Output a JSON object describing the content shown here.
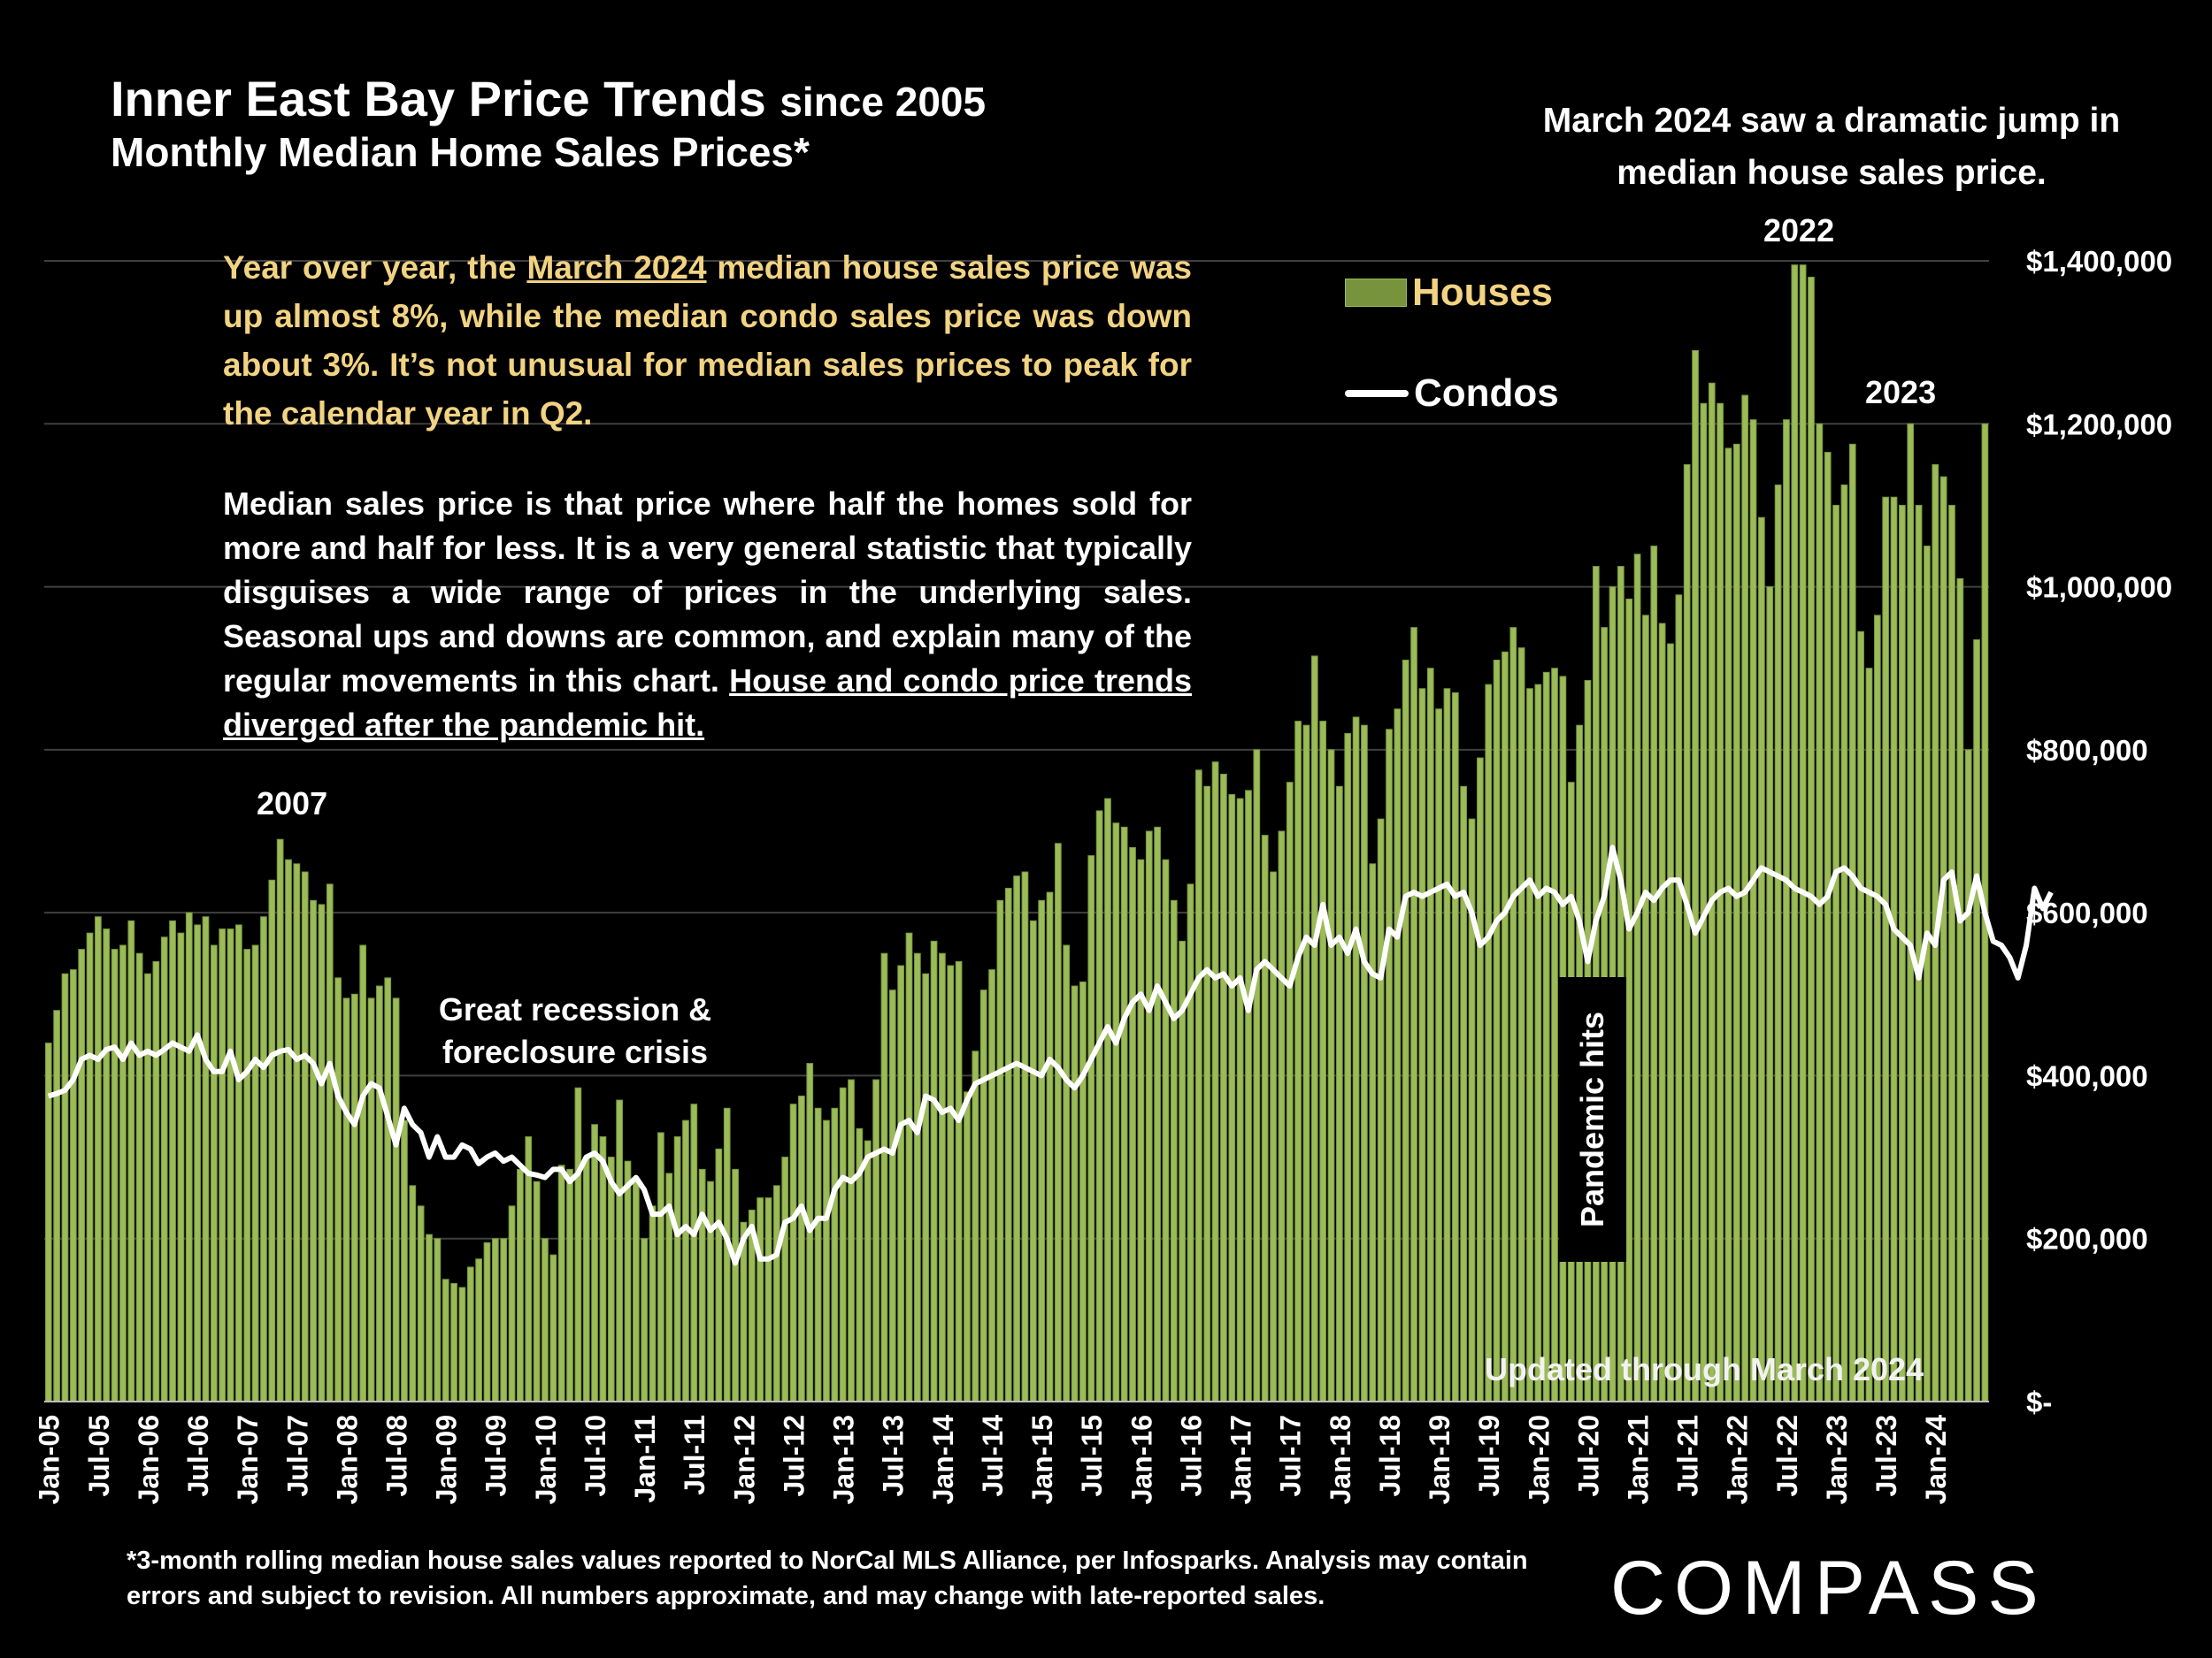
{
  "title": {
    "main": "Inner East Bay Price Trends",
    "since": "since 2005",
    "subtitle": "Monthly Median Home Sales Prices*"
  },
  "top_note": "March 2024 saw a dramatic jump in median house sales price.",
  "paragraph1": {
    "before": "Year over year, the ",
    "link": "March 2024",
    "after": " median house sales price was up almost 8%, while the median condo sales price was down about 3%. It’s not unusual for median sales prices to peak for the calendar year in Q2."
  },
  "paragraph2": {
    "text": "Median sales price is that price where half the homes sold for more and half for less. It is a very general statistic that typically disguises a wide range of prices in the underlying sales. Seasonal ups and downs are common, and explain many of the regular movements in this chart. ",
    "underlined": "House and condo price trends diverged after the pandemic hit."
  },
  "annotations": {
    "y2007": "2007",
    "recession": "Great recession & foreclosure crisis",
    "y2022": "2022",
    "y2023": "2023",
    "pandemic": "Pandemic hits",
    "updated": "Updated through March 2024"
  },
  "footnote": "*3-month rolling median house sales values reported to NorCal MLS Alliance, per Infosparks. Analysis may contain errors and subject to revision. All numbers approximate, and may change with late-reported sales.",
  "logo": "COMPASS",
  "colors": {
    "background": "#000000",
    "houses_fill": "#9bbb59",
    "houses_dark": "#77933c",
    "condo_line": "#ffffff",
    "highlight_text": "#f2d382"
  },
  "chart_data": {
    "type": "bar",
    "title": "Inner East Bay Price Trends since 2005",
    "start_month": "Jan-05",
    "ylim": [
      0,
      1400000
    ],
    "y_ticks": [
      {
        "value": 0,
        "label": "$-"
      },
      {
        "value": 200000,
        "label": "$200,000"
      },
      {
        "value": 400000,
        "label": "$400,000"
      },
      {
        "value": 600000,
        "label": "$600,000"
      },
      {
        "value": 800000,
        "label": "$800,000"
      },
      {
        "value": 1000000,
        "label": "$1,000,000"
      },
      {
        "value": 1200000,
        "label": "$1,200,000"
      },
      {
        "value": 1400000,
        "label": "$1,400,000"
      }
    ],
    "x_tick_labels": [
      "Jan-05",
      "Jul-05",
      "Jan-06",
      "Jul-06",
      "Jan-07",
      "Jul-07",
      "Jan-08",
      "Jul-08",
      "Jan-09",
      "Jul-09",
      "Jan-10",
      "Jul-10",
      "Jan-11",
      "Jul-11",
      "Jan-12",
      "Jul-12",
      "Jan-13",
      "Jul-13",
      "Jan-14",
      "Jul-14",
      "Jan-15",
      "Jul-15",
      "Jan-16",
      "Jul-16",
      "Jan-17",
      "Jul-17",
      "Jan-18",
      "Jul-18",
      "Jan-19",
      "Jul-19",
      "Jan-20",
      "Jul-20",
      "Jan-21",
      "Jul-21",
      "Jan-22",
      "Jul-22",
      "Jan-23",
      "Jul-23",
      "Jan-24"
    ],
    "grid": true,
    "legend_position": "top-right",
    "series": [
      {
        "name": "Houses",
        "type": "bar",
        "values": [
          440000,
          480000,
          525000,
          530000,
          555000,
          575000,
          595000,
          580000,
          555000,
          560000,
          590000,
          550000,
          525000,
          540000,
          570000,
          590000,
          575000,
          600000,
          585000,
          595000,
          560000,
          580000,
          580000,
          585000,
          555000,
          560000,
          595000,
          640000,
          690000,
          665000,
          660000,
          650000,
          615000,
          610000,
          635000,
          520000,
          495000,
          500000,
          560000,
          495000,
          510000,
          520000,
          495000,
          345000,
          265000,
          240000,
          205000,
          200000,
          150000,
          145000,
          140000,
          165000,
          175000,
          195000,
          200000,
          200000,
          240000,
          285000,
          325000,
          270000,
          200000,
          180000,
          290000,
          285000,
          385000,
          300000,
          340000,
          325000,
          300000,
          370000,
          295000,
          270000,
          200000,
          240000,
          330000,
          280000,
          325000,
          345000,
          365000,
          285000,
          270000,
          310000,
          360000,
          285000,
          220000,
          235000,
          250000,
          250000,
          265000,
          300000,
          365000,
          375000,
          415000,
          360000,
          345000,
          360000,
          385000,
          395000,
          335000,
          320000,
          395000,
          550000,
          505000,
          535000,
          575000,
          550000,
          525000,
          565000,
          550000,
          535000,
          540000,
          380000,
          430000,
          505000,
          530000,
          615000,
          630000,
          645000,
          650000,
          590000,
          615000,
          625000,
          685000,
          560000,
          510000,
          515000,
          670000,
          725000,
          740000,
          710000,
          705000,
          680000,
          665000,
          700000,
          705000,
          665000,
          615000,
          565000,
          635000,
          775000,
          755000,
          785000,
          770000,
          745000,
          740000,
          750000,
          800000,
          695000,
          650000,
          700000,
          760000,
          835000,
          830000,
          915000,
          835000,
          800000,
          755000,
          820000,
          840000,
          830000,
          660000,
          715000,
          825000,
          850000,
          910000,
          950000,
          875000,
          900000,
          850000,
          875000,
          870000,
          755000,
          715000,
          790000,
          880000,
          910000,
          920000,
          950000,
          925000,
          875000,
          880000,
          895000,
          900000,
          890000,
          760000,
          830000,
          885000,
          1025000,
          950000,
          1000000,
          1025000,
          985000,
          1040000,
          965000,
          1050000,
          955000,
          930000,
          990000,
          1150000,
          1290000,
          1225000,
          1250000,
          1225000,
          1170000,
          1175000,
          1235000,
          1205000,
          1085000,
          1000000,
          1125000,
          1205000,
          1395000,
          1395000,
          1380000,
          1200000,
          1165000,
          1100000,
          1125000,
          1175000,
          945000,
          900000,
          965000,
          1110000,
          1110000,
          1100000,
          1200000,
          1100000,
          1050000,
          1150000,
          1135000,
          1100000,
          1010000,
          800000,
          935000,
          1200000
        ]
      },
      {
        "name": "Condos",
        "type": "line",
        "values": [
          375000,
          378000,
          382000,
          395000,
          420000,
          425000,
          420000,
          432000,
          435000,
          420000,
          440000,
          425000,
          430000,
          425000,
          432000,
          440000,
          435000,
          430000,
          450000,
          420000,
          405000,
          405000,
          430000,
          395000,
          405000,
          420000,
          410000,
          425000,
          430000,
          432000,
          420000,
          425000,
          415000,
          390000,
          415000,
          375000,
          355000,
          340000,
          375000,
          390000,
          385000,
          350000,
          315000,
          360000,
          340000,
          330000,
          300000,
          325000,
          300000,
          300000,
          315000,
          310000,
          292000,
          300000,
          305000,
          295000,
          300000,
          290000,
          280000,
          278000,
          275000,
          285000,
          285000,
          270000,
          280000,
          300000,
          305000,
          295000,
          270000,
          255000,
          265000,
          275000,
          260000,
          230000,
          230000,
          240000,
          205000,
          215000,
          205000,
          230000,
          210000,
          220000,
          200000,
          170000,
          200000,
          215000,
          175000,
          175000,
          180000,
          220000,
          225000,
          240000,
          210000,
          225000,
          225000,
          260000,
          275000,
          270000,
          280000,
          300000,
          305000,
          310000,
          305000,
          340000,
          345000,
          330000,
          375000,
          370000,
          355000,
          360000,
          345000,
          370000,
          390000,
          395000,
          400000,
          405000,
          410000,
          415000,
          410000,
          405000,
          400000,
          420000,
          410000,
          395000,
          385000,
          400000,
          420000,
          440000,
          460000,
          440000,
          470000,
          490000,
          500000,
          480000,
          510000,
          490000,
          470000,
          480000,
          500000,
          520000,
          530000,
          520000,
          525000,
          510000,
          520000,
          480000,
          530000,
          540000,
          530000,
          520000,
          510000,
          545000,
          570000,
          560000,
          610000,
          560000,
          570000,
          550000,
          580000,
          540000,
          525000,
          520000,
          580000,
          570000,
          620000,
          625000,
          620000,
          625000,
          630000,
          635000,
          620000,
          625000,
          600000,
          560000,
          570000,
          590000,
          600000,
          620000,
          630000,
          640000,
          620000,
          630000,
          625000,
          610000,
          620000,
          590000,
          540000,
          590000,
          620000,
          680000,
          640000,
          580000,
          600000,
          625000,
          615000,
          630000,
          640000,
          640000,
          610000,
          575000,
          595000,
          615000,
          625000,
          630000,
          620000,
          625000,
          640000,
          655000,
          650000,
          645000,
          640000,
          630000,
          625000,
          620000,
          610000,
          620000,
          650000,
          655000,
          645000,
          630000,
          625000,
          620000,
          610000,
          580000,
          570000,
          560000,
          520000,
          575000,
          560000,
          640000,
          650000,
          590000,
          600000,
          645000,
          600000,
          565000,
          560000,
          545000,
          520000,
          560000,
          630000,
          605000,
          625000
        ]
      }
    ]
  }
}
